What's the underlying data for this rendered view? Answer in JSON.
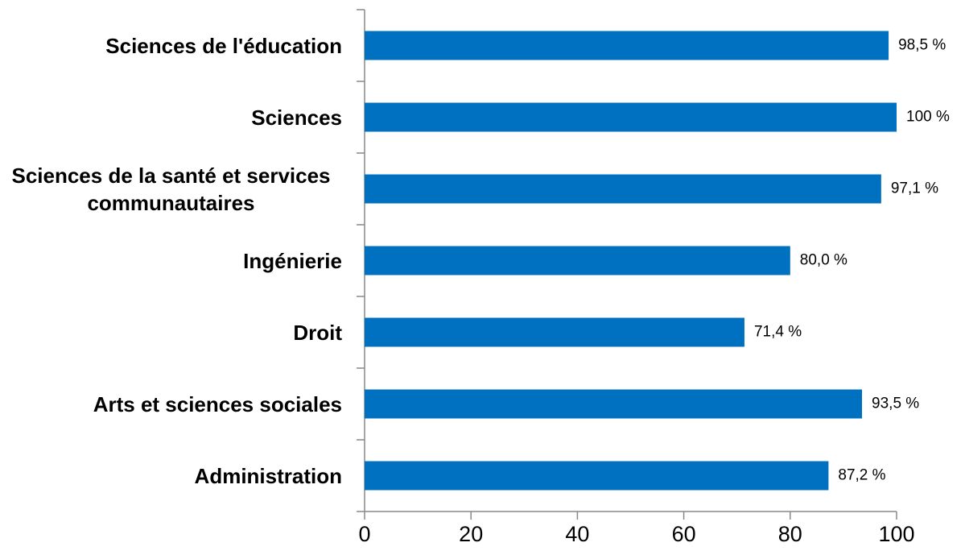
{
  "chart_data": {
    "type": "bar",
    "orientation": "horizontal",
    "categories": [
      "Sciences de l'éducation",
      "Sciences",
      "Sciences de la santé et services communautaires",
      "Ingénierie",
      "Droit",
      "Arts et sciences sociales",
      "Administration"
    ],
    "values": [
      98.5,
      100,
      97.1,
      80.0,
      71.4,
      93.5,
      87.2
    ],
    "value_labels": [
      "98,5 %",
      "100 %",
      "97,1 %",
      "80,0 %",
      "71,4 %",
      "93,5 %",
      "87,2 %"
    ],
    "color": "#0070c0",
    "xlim": [
      0,
      100
    ],
    "xticks": [
      0,
      20,
      40,
      60,
      80,
      100
    ]
  }
}
